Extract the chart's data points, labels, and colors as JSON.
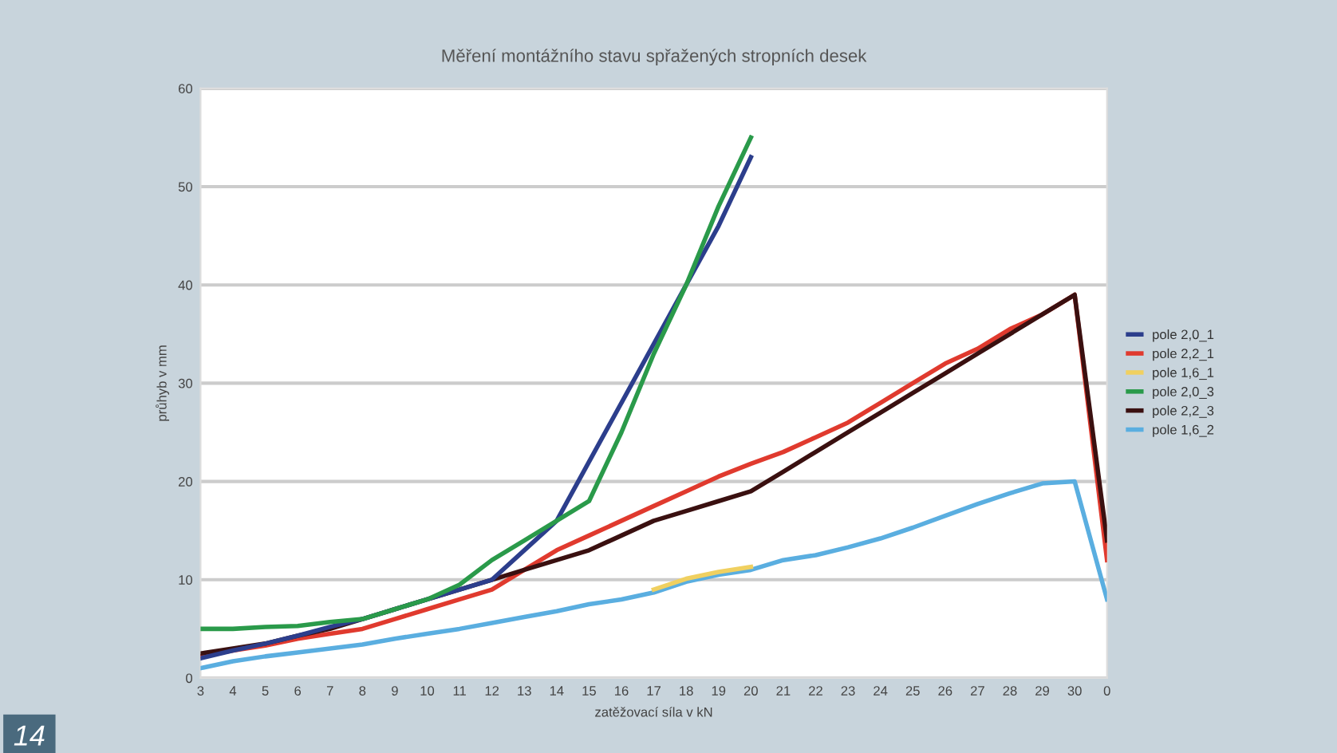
{
  "chart_data": {
    "type": "line",
    "title": "Měření montážního stavu spřažených stropních desek",
    "xlabel": "zatěžovací síla v kN",
    "ylabel": "průhyb v mm",
    "categories": [
      "3",
      "4",
      "5",
      "6",
      "7",
      "8",
      "9",
      "10",
      "11",
      "12",
      "13",
      "14",
      "15",
      "16",
      "17",
      "18",
      "19",
      "20",
      "21",
      "22",
      "23",
      "24",
      "25",
      "26",
      "27",
      "28",
      "29",
      "30",
      "0"
    ],
    "series": [
      {
        "name": "pole 2,0_1",
        "color": "#2c3e8c",
        "values": [
          2.0,
          2.8,
          3.5,
          4.3,
          5.2,
          6,
          7,
          8,
          9,
          10,
          13,
          16,
          22,
          28,
          34,
          40,
          46,
          53,
          null,
          null,
          null,
          null,
          null,
          null,
          null,
          null,
          null,
          null,
          null
        ]
      },
      {
        "name": "pole 2,2_1",
        "color": "#e03a2e",
        "values": [
          2.2,
          2.8,
          3.3,
          4,
          4.5,
          5,
          6,
          7,
          8,
          9,
          11,
          13,
          14.5,
          16,
          17.5,
          19,
          20.5,
          21.8,
          23,
          24.5,
          26,
          28,
          30,
          32,
          33.5,
          35.5,
          37,
          39,
          12
        ]
      },
      {
        "name": "pole 1,6_1",
        "color": "#f0d060",
        "values": [
          null,
          null,
          null,
          null,
          null,
          null,
          null,
          null,
          null,
          null,
          null,
          null,
          null,
          null,
          9.0,
          10.1,
          10.8,
          11.3,
          null,
          null,
          null,
          null,
          null,
          null,
          null,
          null,
          null,
          null,
          null
        ]
      },
      {
        "name": "pole 2,0_3",
        "color": "#2a9a4a",
        "values": [
          5,
          5,
          5.2,
          5.3,
          5.7,
          6,
          7,
          8,
          9.5,
          12,
          14,
          16,
          18,
          25,
          33,
          40,
          48,
          55,
          null,
          null,
          null,
          null,
          null,
          null,
          null,
          null,
          null,
          null,
          null
        ]
      },
      {
        "name": "pole 2,2_3",
        "color": "#3a1010",
        "values": [
          2.5,
          3,
          3.5,
          4.3,
          5,
          6,
          7,
          8,
          9,
          10,
          11,
          12,
          13,
          14.5,
          16,
          17,
          18,
          19,
          21,
          23,
          25,
          27,
          29,
          31,
          33,
          35,
          37,
          39,
          14
        ]
      },
      {
        "name": "pole 1,6_2",
        "color": "#5aaee0",
        "values": [
          1,
          1.7,
          2.2,
          2.6,
          3,
          3.4,
          4,
          4.5,
          5,
          5.6,
          6.2,
          6.8,
          7.5,
          8,
          8.7,
          9.8,
          10.5,
          11,
          12,
          12.5,
          13.3,
          14.2,
          15.3,
          16.5,
          17.7,
          18.8,
          19.8,
          20,
          8
        ]
      }
    ],
    "ylim": [
      0,
      60
    ],
    "yticks": [
      0,
      10,
      20,
      30,
      40,
      50,
      60
    ],
    "grid": "y",
    "legend": "right",
    "marker": "none",
    "line_style": "solid",
    "annotations": [
      "14"
    ]
  }
}
